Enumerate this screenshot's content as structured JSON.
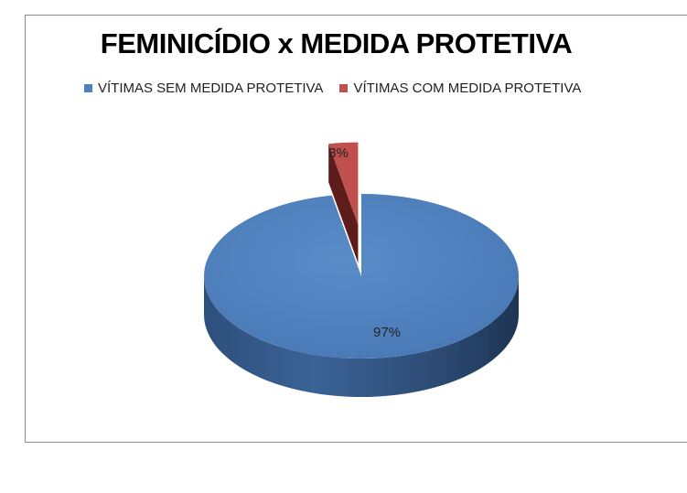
{
  "chart_data": {
    "type": "pie",
    "title": "FEMINICÍDIO x MEDIDA PROTETIVA",
    "legend_position": "top",
    "categories": [
      "VÍTIMAS SEM MEDIDA PROTETIVA",
      "VÍTIMAS COM MEDIDA PROTETIVA"
    ],
    "values": [
      97,
      3
    ],
    "labels": [
      "97%",
      "3%"
    ],
    "colors": [
      "#4f81bd",
      "#c0504d"
    ],
    "exploded": [
      false,
      true
    ],
    "style": "3d"
  }
}
